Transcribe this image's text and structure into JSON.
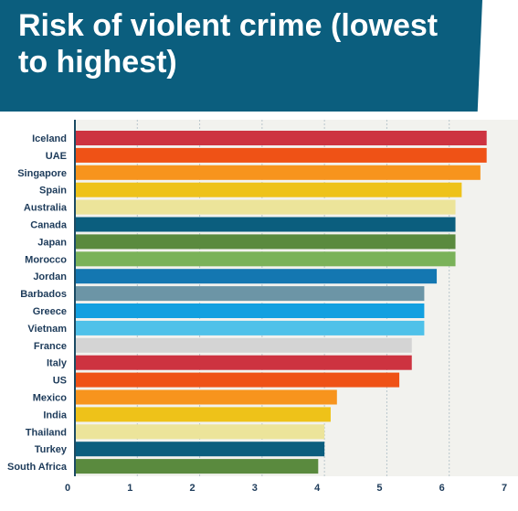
{
  "header": {
    "title": "Risk of violent crime (lowest to highest)"
  },
  "colors": {
    "banner": "#0b5e7e",
    "plot_background": "#f2f2ee",
    "axis": "#1b4a63",
    "label_text": "#1d3b5a"
  },
  "chart_data": {
    "type": "bar",
    "orientation": "horizontal",
    "title": "Risk of violent crime (lowest to highest)",
    "xlabel": "",
    "ylabel": "",
    "xlim": [
      0,
      7
    ],
    "xticks": [
      "0",
      "1",
      "2",
      "3",
      "4",
      "5",
      "6",
      "7"
    ],
    "grid": "vertical",
    "categories": [
      "Iceland",
      "UAE",
      "Singapore",
      "Spain",
      "Australia",
      "Canada",
      "Japan",
      "Morocco",
      "Jordan",
      "Barbados",
      "Greece",
      "Vietnam",
      "France",
      "Italy",
      "US",
      "Mexico",
      "India",
      "Thailand",
      "Turkey",
      "South Africa"
    ],
    "values": [
      6.6,
      6.6,
      6.5,
      6.2,
      6.1,
      6.1,
      6.1,
      6.1,
      5.8,
      5.6,
      5.6,
      5.6,
      5.4,
      5.4,
      5.2,
      4.2,
      4.1,
      4.0,
      4.0,
      3.9
    ],
    "bar_colors": [
      "#cd3340",
      "#ef5216",
      "#f7941d",
      "#eec219",
      "#ece49a",
      "#0b5e7e",
      "#5a8a3e",
      "#7ab259",
      "#1477b1",
      "#6c95a6",
      "#12a0e0",
      "#4fc1e9",
      "#d4d4d4",
      "#cd3340",
      "#ef5216",
      "#f7941d",
      "#eec219",
      "#ece49a",
      "#0b5e7e",
      "#5a8a3e"
    ]
  }
}
